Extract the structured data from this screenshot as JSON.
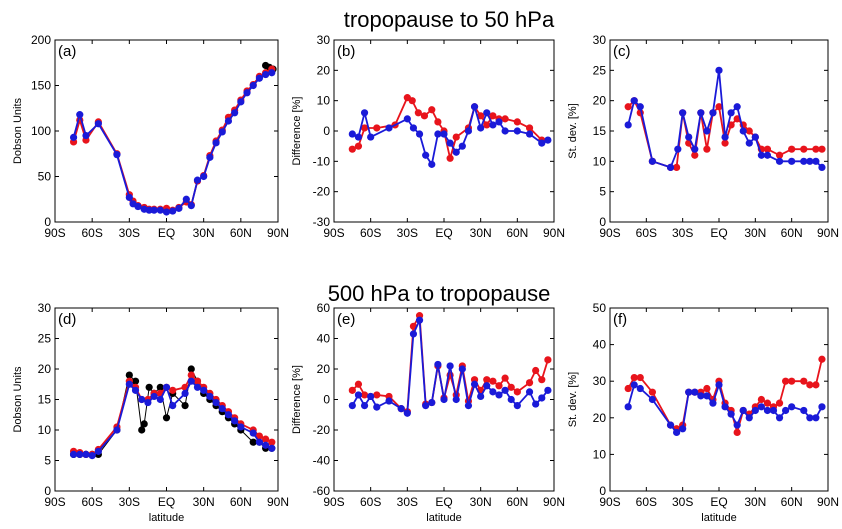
{
  "titles": {
    "top": "tropopause to 50 hPa",
    "bottom": "500 hPa to tropopause"
  },
  "colors": {
    "red": "#e8141c",
    "blue": "#1a1ad8",
    "black": "#000000"
  },
  "chart_data": [
    {
      "type": "line",
      "panel_label": "(a)",
      "ylabel": "Dobson Units",
      "xlabel": "",
      "xlim": [
        -90,
        90
      ],
      "ylim": [
        0,
        200
      ],
      "yticks": [
        0,
        50,
        100,
        150,
        200
      ],
      "xticks": [
        -90,
        -60,
        -30,
        0,
        30,
        60,
        90
      ],
      "xtick_labels": [
        "90S",
        "60S",
        "30S",
        "EQ",
        "30N",
        "60N",
        "90N"
      ],
      "series": [
        {
          "color": "black",
          "x": [
            80,
            83,
            86
          ],
          "y": [
            172,
            170,
            168
          ]
        },
        {
          "color": "red",
          "x": [
            -75,
            -70,
            -65,
            -55,
            -40,
            -30,
            -27,
            -23,
            -18,
            -14,
            -10,
            -5,
            0,
            5,
            10,
            16,
            20,
            25,
            30,
            35,
            40,
            45,
            50,
            55,
            60,
            65,
            70,
            75,
            80,
            85
          ],
          "y": [
            88,
            112,
            90,
            110,
            75,
            30,
            23,
            18,
            16,
            14,
            14,
            14,
            15,
            13,
            16,
            22,
            19,
            45,
            51,
            73,
            89,
            101,
            115,
            123,
            134,
            144,
            151,
            160,
            164,
            168
          ]
        },
        {
          "color": "blue",
          "x": [
            -75,
            -70,
            -65,
            -55,
            -40,
            -30,
            -27,
            -23,
            -18,
            -14,
            -10,
            -5,
            0,
            5,
            10,
            16,
            20,
            25,
            30,
            35,
            40,
            45,
            50,
            55,
            60,
            65,
            70,
            75,
            80,
            85
          ],
          "y": [
            93,
            118,
            95,
            108,
            74,
            27,
            20,
            17,
            14,
            13,
            13,
            13,
            11,
            12,
            15,
            25,
            18,
            46,
            50,
            71,
            87,
            99,
            111,
            120,
            132,
            142,
            150,
            158,
            162,
            164
          ]
        }
      ]
    },
    {
      "type": "line",
      "panel_label": "(b)",
      "ylabel": "Difference [%]",
      "xlabel": "",
      "xlim": [
        -90,
        90
      ],
      "ylim": [
        -30,
        30
      ],
      "yticks": [
        -30,
        -20,
        -10,
        0,
        10,
        20,
        30
      ],
      "xticks": [
        -90,
        -60,
        -30,
        0,
        30,
        60,
        90
      ],
      "xtick_labels": [
        "90S",
        "60S",
        "30S",
        "EQ",
        "30N",
        "60N",
        "90N"
      ],
      "series": [
        {
          "color": "red",
          "x": [
            -75,
            -70,
            -65,
            -55,
            -40,
            -30,
            -26,
            -21,
            -16,
            -10,
            -5,
            0,
            5,
            10,
            20,
            25,
            30,
            35,
            40,
            45,
            50,
            60,
            70,
            80
          ],
          "y": [
            -6,
            -5,
            1,
            1,
            2,
            11,
            10,
            6,
            5,
            7,
            3,
            0,
            -9,
            -2,
            1,
            8,
            5,
            2,
            5,
            4,
            4,
            3,
            1,
            -3
          ]
        },
        {
          "color": "blue",
          "x": [
            -75,
            -70,
            -65,
            -60,
            -45,
            -30,
            -25,
            -20,
            -15,
            -10,
            -5,
            0,
            5,
            10,
            15,
            20,
            25,
            30,
            35,
            40,
            45,
            50,
            60,
            70,
            80,
            85
          ],
          "y": [
            -1,
            -2,
            6,
            -2,
            1,
            4,
            1,
            -1,
            -8,
            -11,
            -1,
            -1,
            -4,
            -7,
            -5,
            0,
            8,
            1,
            6,
            2,
            3,
            0,
            0,
            -1,
            -4,
            -3
          ]
        }
      ]
    },
    {
      "type": "line",
      "panel_label": "(c)",
      "ylabel": "St. dev. [%]",
      "xlabel": "",
      "xlim": [
        -90,
        90
      ],
      "ylim": [
        0,
        30
      ],
      "yticks": [
        0,
        5,
        10,
        15,
        20,
        25,
        30
      ],
      "xticks": [
        -90,
        -60,
        -30,
        0,
        30,
        60,
        90
      ],
      "xtick_labels": [
        "90S",
        "60S",
        "30S",
        "EQ",
        "30N",
        "60N",
        "90N"
      ],
      "series": [
        {
          "color": "red",
          "x": [
            -75,
            -70,
            -65,
            -55,
            -40,
            -35,
            -30,
            -25,
            -20,
            -15,
            -10,
            -5,
            0,
            5,
            10,
            15,
            20,
            25,
            30,
            35,
            40,
            50,
            60,
            70,
            80,
            85
          ],
          "y": [
            19,
            20,
            18,
            10,
            9,
            9,
            18,
            13,
            11,
            18,
            12,
            18,
            19,
            13,
            16,
            17,
            16,
            15,
            14,
            12,
            12,
            11,
            12,
            12,
            12,
            12
          ]
        },
        {
          "color": "blue",
          "x": [
            -75,
            -70,
            -65,
            -55,
            -40,
            -34,
            -30,
            -25,
            -20,
            -15,
            -10,
            -5,
            0,
            5,
            10,
            15,
            20,
            25,
            30,
            35,
            40,
            50,
            60,
            70,
            75,
            80,
            85
          ],
          "y": [
            16,
            20,
            19,
            10,
            9,
            12,
            18,
            14,
            12,
            18,
            15,
            18,
            25,
            14,
            18,
            19,
            15,
            13,
            14,
            11,
            11,
            10,
            10,
            10,
            10,
            10,
            9
          ]
        }
      ]
    },
    {
      "type": "line",
      "panel_label": "(d)",
      "ylabel": "Dobson Units",
      "xlabel": "latitude",
      "xlim": [
        -90,
        90
      ],
      "ylim": [
        0,
        30
      ],
      "yticks": [
        0,
        5,
        10,
        15,
        20,
        25,
        30
      ],
      "xticks": [
        -90,
        -60,
        -30,
        0,
        30,
        60,
        90
      ],
      "xtick_labels": [
        "90S",
        "60S",
        "30S",
        "EQ",
        "30N",
        "60N",
        "90N"
      ],
      "series": [
        {
          "color": "black",
          "x": [
            -75,
            -70,
            -65,
            -60,
            -55,
            -40,
            -30,
            -25,
            -20,
            -18,
            -14,
            -10,
            -5,
            0,
            5,
            15,
            20,
            25,
            30,
            35,
            40,
            45,
            50,
            55,
            60,
            70,
            75,
            80,
            85
          ],
          "y": [
            6,
            6,
            6,
            6,
            6,
            10,
            19,
            18,
            10,
            11,
            17,
            16,
            17,
            12,
            16,
            14,
            20,
            18,
            16,
            15,
            14,
            13,
            12,
            11,
            10,
            8,
            8,
            7,
            7
          ]
        },
        {
          "color": "red",
          "x": [
            -75,
            -70,
            -65,
            -60,
            -55,
            -40,
            -30,
            -25,
            -20,
            -15,
            -10,
            -5,
            0,
            5,
            15,
            20,
            25,
            30,
            35,
            40,
            45,
            50,
            55,
            60,
            70,
            75,
            80,
            85
          ],
          "y": [
            6.5,
            6.3,
            6,
            6,
            6.8,
            10.5,
            18,
            17,
            15,
            15,
            16,
            16,
            17,
            16.5,
            17,
            19,
            18,
            17,
            16,
            15,
            14,
            13,
            12,
            11,
            10,
            9,
            8.5,
            8
          ]
        },
        {
          "color": "blue",
          "x": [
            -75,
            -70,
            -65,
            -60,
            -55,
            -40,
            -30,
            -25,
            -20,
            -15,
            -10,
            -5,
            0,
            5,
            15,
            20,
            25,
            30,
            35,
            40,
            45,
            50,
            55,
            60,
            70,
            75,
            80,
            85
          ],
          "y": [
            6,
            6,
            6,
            5.8,
            6.5,
            10,
            17.5,
            16.5,
            15,
            14.5,
            15.5,
            15,
            17,
            14,
            16,
            18,
            17,
            16.5,
            15.5,
            14.5,
            13.5,
            12.5,
            11.5,
            10.5,
            9.5,
            8,
            7.5,
            7
          ]
        }
      ]
    },
    {
      "type": "line",
      "panel_label": "(e)",
      "ylabel": "Difference [%]",
      "xlabel": "latitude",
      "xlim": [
        -90,
        90
      ],
      "ylim": [
        -60,
        60
      ],
      "yticks": [
        -60,
        -40,
        -20,
        0,
        20,
        40,
        60
      ],
      "xticks": [
        -90,
        -60,
        -30,
        0,
        30,
        60,
        90
      ],
      "xtick_labels": [
        "90S",
        "60S",
        "30S",
        "EQ",
        "30N",
        "60N",
        "90N"
      ],
      "series": [
        {
          "color": "red",
          "x": [
            -75,
            -70,
            -65,
            -60,
            -55,
            -45,
            -35,
            -30,
            -25,
            -20,
            -15,
            -10,
            -5,
            0,
            5,
            10,
            15,
            20,
            25,
            30,
            35,
            40,
            45,
            50,
            55,
            60,
            70,
            75,
            80,
            85
          ],
          "y": [
            6,
            10,
            3,
            2,
            3,
            2,
            -6,
            -8,
            48,
            55,
            -3,
            -2,
            22,
            1,
            16,
            3,
            22,
            -1,
            13,
            6,
            13,
            12,
            9,
            14,
            8,
            5,
            11,
            19,
            13,
            26
          ]
        },
        {
          "color": "blue",
          "x": [
            -75,
            -70,
            -65,
            -60,
            -55,
            -45,
            -35,
            -30,
            -25,
            -20,
            -15,
            -10,
            -5,
            0,
            5,
            10,
            15,
            20,
            25,
            30,
            35,
            40,
            45,
            50,
            55,
            60,
            70,
            75,
            80,
            85
          ],
          "y": [
            -4,
            3,
            -4,
            2,
            -5,
            -1,
            -6,
            -9,
            43,
            52,
            -4,
            -2,
            23,
            0,
            22,
            0,
            20,
            -4,
            10,
            2,
            9,
            5,
            3,
            6,
            0,
            -4,
            5,
            -3,
            1,
            6
          ]
        }
      ]
    },
    {
      "type": "line",
      "panel_label": "(f)",
      "ylabel": "St. dev. [%]",
      "xlabel": "latitude",
      "xlim": [
        -90,
        90
      ],
      "ylim": [
        0,
        50
      ],
      "yticks": [
        0,
        10,
        20,
        30,
        40,
        50
      ],
      "xticks": [
        -90,
        -60,
        -30,
        0,
        30,
        60,
        90
      ],
      "xtick_labels": [
        "90S",
        "60S",
        "30S",
        "EQ",
        "30N",
        "60N",
        "90N"
      ],
      "series": [
        {
          "color": "red",
          "x": [
            -75,
            -70,
            -65,
            -55,
            -40,
            -35,
            -30,
            -25,
            -20,
            -15,
            -10,
            -5,
            0,
            5,
            10,
            15,
            20,
            25,
            30,
            35,
            40,
            45,
            50,
            55,
            60,
            70,
            75,
            80,
            85
          ],
          "y": [
            28,
            31,
            31,
            27,
            18,
            17,
            18,
            27,
            27,
            27,
            28,
            25,
            30,
            24,
            22,
            16,
            22,
            21,
            23,
            25,
            24,
            23,
            24,
            30,
            30,
            30,
            29,
            29,
            36
          ]
        },
        {
          "color": "blue",
          "x": [
            -75,
            -70,
            -65,
            -55,
            -40,
            -35,
            -30,
            -25,
            -20,
            -15,
            -10,
            -5,
            0,
            5,
            10,
            15,
            20,
            25,
            30,
            35,
            40,
            45,
            50,
            55,
            60,
            70,
            75,
            80,
            85
          ],
          "y": [
            23,
            29,
            28,
            25,
            18,
            16,
            17,
            27,
            27,
            26,
            26,
            24,
            29,
            23,
            21,
            18,
            22,
            20,
            22,
            23,
            22,
            22,
            20,
            22,
            23,
            22,
            20,
            20,
            23
          ]
        }
      ]
    }
  ]
}
